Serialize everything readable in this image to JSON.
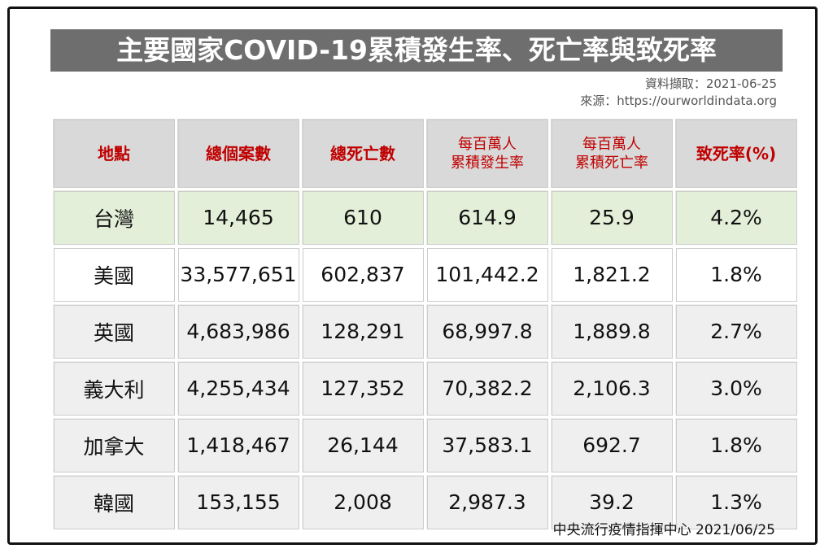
{
  "header": {
    "title": "主要國家COVID-19累積發生率、死亡率與致死率",
    "data_date": "資料擷取：2021-06-25",
    "source": "來源：https://ourworldindata.org"
  },
  "table": {
    "columns": [
      [
        "地點"
      ],
      [
        "總個案數"
      ],
      [
        "總死亡數"
      ],
      [
        "每百萬人",
        "累積發生率"
      ],
      [
        "每百萬人",
        "累積死亡率"
      ],
      [
        "致死率(%)"
      ]
    ],
    "rows": [
      [
        "台灣",
        "14,465",
        "610",
        "614.9",
        "25.9",
        "4.2%"
      ],
      [
        "美國",
        "33,577,651",
        "602,837",
        "101,442.2",
        "1,821.2",
        "1.8%"
      ],
      [
        "英國",
        "4,683,986",
        "128,291",
        "68,997.8",
        "1,889.8",
        "2.7%"
      ],
      [
        "義大利",
        "4,255,434",
        "127,352",
        "70,382.2",
        "2,106.3",
        "3.0%"
      ],
      [
        "加拿大",
        "1,418,467",
        "26,144",
        "37,583.1",
        "692.7",
        "1.8%"
      ],
      [
        "韓國",
        "153,155",
        "2,008",
        "2,987.3",
        "39.2",
        "1.3%"
      ]
    ]
  },
  "footer": {
    "credit": "中央流行疫情指揮中心 2021/06/25"
  }
}
